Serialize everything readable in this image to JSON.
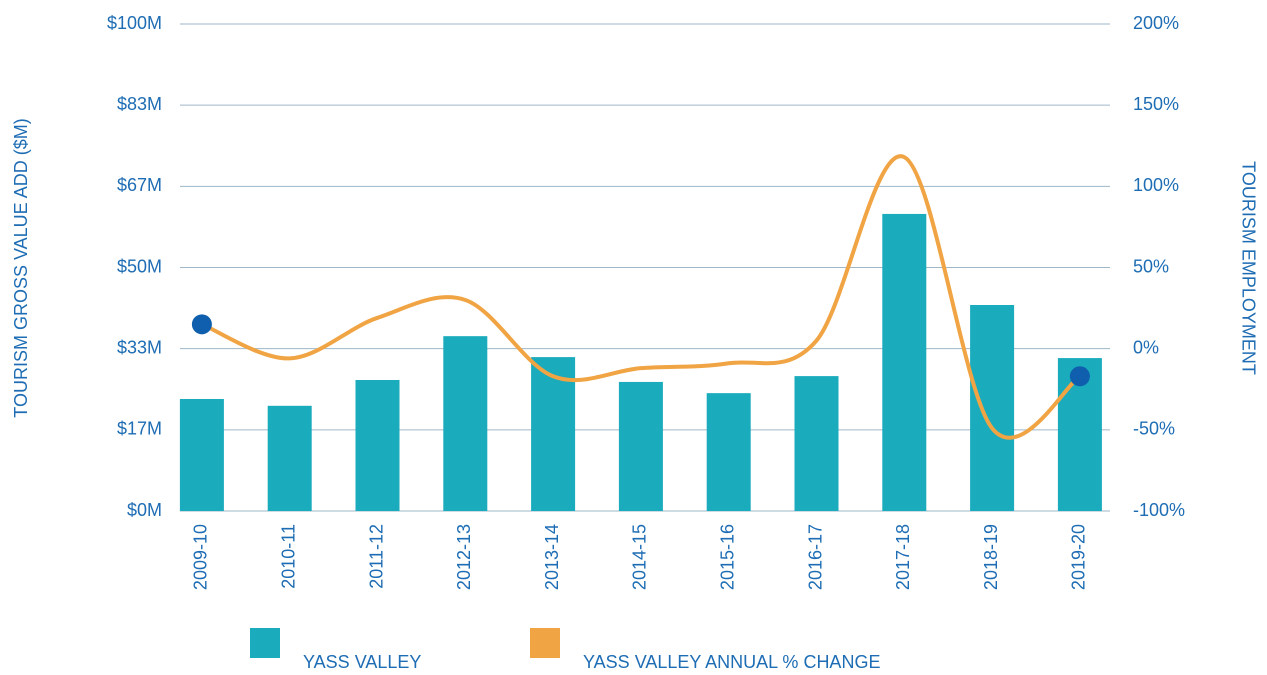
{
  "chart_data": {
    "type": "bar-line",
    "y_label": "TOURISM GROSS VALUE ADD ($M)",
    "y2_label": "TOURISM EMPLOYMENT",
    "categories": [
      "2009-10",
      "2010-11",
      "2011-12",
      "2012-13",
      "2013-14",
      "2014-15",
      "2015-16",
      "2016-17",
      "2017-18",
      "2018-19",
      "2019-20"
    ],
    "series": [
      {
        "name": "YASS VALLEY",
        "color": "#1aabbc",
        "type": "bar",
        "values": [
          23.0,
          21.6,
          26.9,
          35.9,
          31.6,
          26.5,
          24.2,
          27.7,
          61.0,
          42.3,
          31.4
        ]
      },
      {
        "name": "YASS VALLEY ANNUAL % CHANGE",
        "color": "#f0a444",
        "type": "line",
        "axis": "y2",
        "marker_color": "#0f5fae",
        "values": [
          15,
          -6,
          19,
          30,
          -17,
          -12,
          -9,
          5,
          118,
          -49,
          -17
        ]
      }
    ],
    "ylim": [
      0,
      100
    ],
    "yticks": [
      {
        "value": 0,
        "label": "$0M"
      },
      {
        "value": 16.67,
        "label": "$17M"
      },
      {
        "value": 33.33,
        "label": "$33M"
      },
      {
        "value": 50,
        "label": "$50M"
      },
      {
        "value": 66.67,
        "label": "$67M"
      },
      {
        "value": 83.33,
        "label": "$83M"
      },
      {
        "value": 100,
        "label": "$100M"
      }
    ],
    "y2lim": [
      -100,
      200
    ],
    "y2ticks": [
      {
        "value": -100,
        "label": "-100%"
      },
      {
        "value": -50,
        "label": "-50%"
      },
      {
        "value": 0,
        "label": "0%"
      },
      {
        "value": 50,
        "label": "50%"
      },
      {
        "value": 100,
        "label": "100%"
      },
      {
        "value": 150,
        "label": "150%"
      },
      {
        "value": 200,
        "label": "200%"
      }
    ],
    "grid": true
  }
}
